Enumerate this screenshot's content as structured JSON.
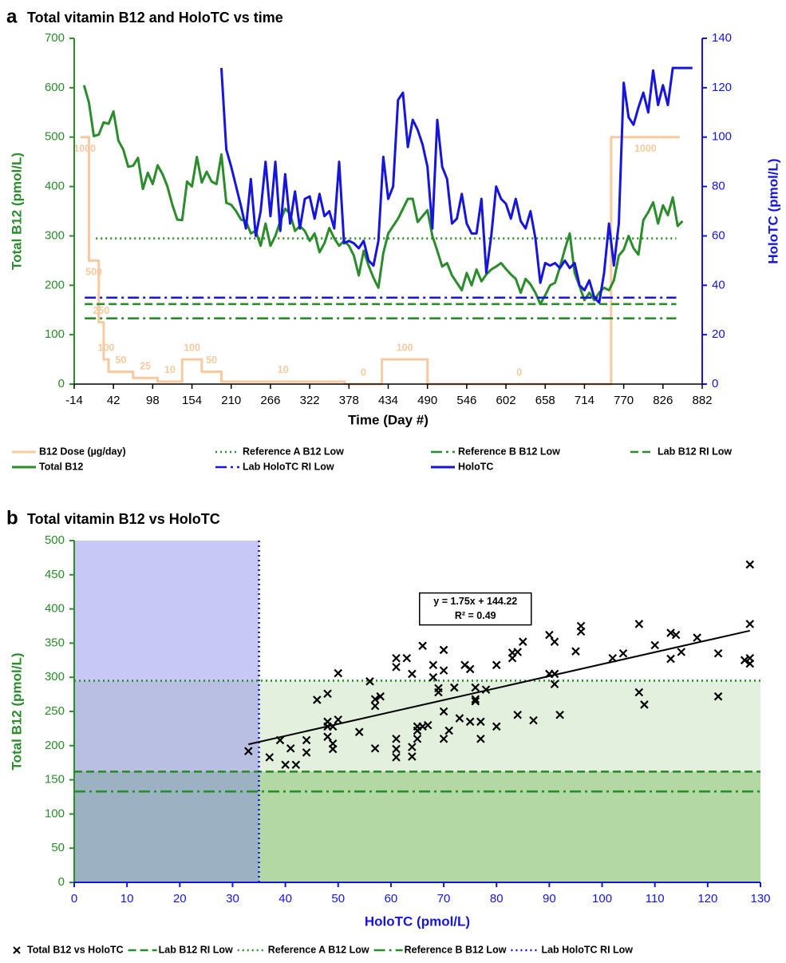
{
  "chart_data": [
    {
      "type": "line",
      "label": "a",
      "title": "Total vitamin B12 and HoloTC vs time",
      "xlabel": "Time (Day #)",
      "ylabel": "Total B12 (pmol/L)",
      "y2label": "HoloTC (pmol/L)",
      "xlim": [
        -14,
        882
      ],
      "xticks": [
        -14,
        42,
        98,
        154,
        210,
        266,
        322,
        378,
        434,
        490,
        546,
        602,
        658,
        714,
        770,
        826,
        882
      ],
      "ylim": [
        0,
        700
      ],
      "yticks": [
        0,
        100,
        200,
        300,
        400,
        500,
        600,
        700
      ],
      "y2lim": [
        0,
        140
      ],
      "y2ticks": [
        0,
        20,
        40,
        60,
        80,
        100,
        120,
        140
      ],
      "y3lim": [
        0,
        1400
      ],
      "series": [
        {
          "name": "B12 Dose (µg/day)",
          "color": "#f9c9a0",
          "style": "solid",
          "step": true,
          "axis": "y3",
          "x": [
            -5,
            7,
            21,
            28,
            35,
            70,
            105,
            140,
            168,
            196,
            372,
            425,
            490,
            752,
            850
          ],
          "values": [
            1000,
            500,
            250,
            100,
            50,
            25,
            10,
            100,
            50,
            10,
            0,
            100,
            0,
            1000,
            1000
          ],
          "value_labels": [
            "1000",
            "500",
            "250",
            "100",
            "50",
            "25",
            "10",
            "100",
            "50",
            "10",
            "0",
            "100",
            "0",
            "1000",
            null
          ]
        },
        {
          "name": "Reference A B12 Low",
          "color": "#2a8c2a",
          "style": "dotted",
          "x": [
            17,
            845
          ],
          "values": [
            295,
            295
          ]
        },
        {
          "name": "Reference B B12 Low",
          "color": "#2a8c2a",
          "style": "dashdot",
          "x": [
            1,
            845
          ],
          "values": [
            133,
            133
          ]
        },
        {
          "name": "Lab B12 RI Low",
          "color": "#2a8c2a",
          "style": "dashed",
          "x": [
            1,
            845
          ],
          "values": [
            162,
            162
          ]
        },
        {
          "name": "Total B12",
          "color": "#2a8c2a",
          "style": "solid",
          "x": [
            0,
            7,
            14,
            21,
            28,
            35,
            42,
            49,
            56,
            63,
            70,
            77,
            84,
            91,
            98,
            105,
            112,
            119,
            126,
            133,
            140,
            147,
            154,
            161,
            168,
            175,
            182,
            189,
            196,
            203,
            210,
            217,
            224,
            231,
            238,
            245,
            252,
            259,
            266,
            273,
            280,
            287,
            294,
            301,
            308,
            315,
            322,
            329,
            336,
            343,
            350,
            357,
            364,
            371,
            378,
            385,
            392,
            399,
            406,
            413,
            420,
            427,
            434,
            441,
            448,
            455,
            462,
            469,
            476,
            483,
            490,
            497,
            504,
            511,
            518,
            525,
            532,
            539,
            546,
            553,
            560,
            567,
            574,
            581,
            588,
            595,
            602,
            609,
            616,
            623,
            630,
            637,
            644,
            651,
            658,
            665,
            672,
            679,
            686,
            693,
            700,
            707,
            714,
            721,
            728,
            735,
            742,
            749,
            756,
            763,
            770,
            777,
            784,
            791,
            798,
            805,
            812,
            819,
            826,
            833,
            840,
            847,
            854
          ],
          "values": [
            605,
            570,
            502,
            505,
            530,
            527,
            552,
            493,
            475,
            440,
            442,
            458,
            395,
            428,
            405,
            443,
            425,
            400,
            363,
            333,
            332,
            410,
            400,
            460,
            408,
            430,
            410,
            405,
            465,
            367,
            363,
            350,
            333,
            330,
            305,
            310,
            280,
            325,
            280,
            300,
            330,
            355,
            345,
            310,
            320,
            310,
            290,
            305,
            267,
            285,
            316,
            295,
            280,
            290,
            280,
            260,
            220,
            270,
            240,
            215,
            195,
            265,
            305,
            320,
            335,
            355,
            375,
            375,
            328,
            340,
            352,
            300,
            270,
            238,
            245,
            220,
            205,
            190,
            225,
            200,
            232,
            208,
            222,
            232,
            238,
            245,
            233,
            222,
            213,
            185,
            213,
            202,
            185,
            162,
            180,
            200,
            205,
            237,
            273,
            305,
            225,
            198,
            170,
            185,
            170,
            185,
            195,
            190,
            210,
            260,
            272,
            300,
            275,
            262,
            332,
            348,
            368,
            325,
            362,
            342,
            378,
            320,
            330
          ]
        },
        {
          "name": "Lab HoloTC RI Low",
          "color": "#1515dd",
          "style": "dashdot",
          "axis": "y2",
          "x": [
            1,
            845
          ],
          "values": [
            35,
            35
          ]
        },
        {
          "name": "HoloTC",
          "color": "#1515dd",
          "style": "solid",
          "axis": "y2",
          "x": [
            196,
            203,
            210,
            217,
            224,
            231,
            238,
            245,
            252,
            259,
            266,
            273,
            280,
            287,
            294,
            301,
            308,
            315,
            322,
            329,
            336,
            343,
            350,
            357,
            364,
            371,
            378,
            385,
            392,
            399,
            406,
            413,
            420,
            427,
            434,
            441,
            448,
            455,
            462,
            469,
            476,
            483,
            490,
            497,
            504,
            511,
            518,
            525,
            532,
            539,
            546,
            553,
            560,
            567,
            574,
            581,
            588,
            595,
            602,
            609,
            616,
            623,
            630,
            637,
            644,
            651,
            658,
            665,
            672,
            679,
            686,
            693,
            700,
            707,
            714,
            721,
            728,
            735,
            742,
            749,
            756,
            763,
            770,
            777,
            784,
            791,
            798,
            805,
            812,
            819,
            826,
            833,
            840,
            847,
            854,
            861,
            868
          ],
          "values": [
            128,
            95,
            88,
            80,
            72,
            63,
            83,
            60,
            70,
            90,
            68,
            90,
            62,
            85,
            65,
            78,
            63,
            75,
            76,
            67,
            77,
            68,
            70,
            63,
            90,
            57,
            58,
            57,
            55,
            58,
            50,
            48,
            58,
            92,
            75,
            80,
            115,
            118,
            96,
            107,
            103,
            97,
            88,
            63,
            107,
            88,
            83,
            65,
            67,
            77,
            65,
            61,
            61,
            75,
            45,
            60,
            80,
            75,
            73,
            67,
            75,
            66,
            63,
            70,
            59,
            41,
            49,
            48,
            49,
            47,
            50,
            47,
            49,
            40,
            38,
            42,
            35,
            33,
            45,
            65,
            48,
            65,
            122,
            108,
            105,
            112,
            118,
            110,
            127,
            113,
            121,
            113,
            128,
            128,
            128,
            128,
            128
          ]
        }
      ]
    },
    {
      "type": "scatter",
      "label": "b",
      "title": "Total vitamin B12 vs HoloTC",
      "xlabel": "HoloTC (pmol/L)",
      "ylabel": "Total B12 (pmol/L)",
      "xlim": [
        0,
        130
      ],
      "xticks": [
        0,
        10,
        20,
        30,
        40,
        50,
        60,
        70,
        80,
        90,
        100,
        110,
        120,
        130
      ],
      "ylim": [
        0,
        500
      ],
      "yticks": [
        0,
        50,
        100,
        150,
        200,
        250,
        300,
        350,
        400,
        450,
        500
      ],
      "series": [
        {
          "name": "Total B12 vs HoloTC",
          "color": "#000000",
          "marker": "x",
          "x": [
            33,
            37,
            39,
            40,
            41,
            42,
            44,
            44,
            46,
            48,
            48,
            48,
            48,
            49,
            49,
            49,
            50,
            50,
            54,
            56,
            57,
            57,
            57,
            58,
            61,
            61,
            61,
            61,
            61,
            63,
            64,
            64,
            64,
            65,
            65,
            65,
            66,
            66,
            67,
            68,
            68,
            69,
            69,
            70,
            70,
            70,
            70,
            71,
            72,
            73,
            74,
            75,
            75,
            76,
            76,
            76,
            77,
            77,
            78,
            80,
            80,
            83,
            83,
            84,
            84,
            85,
            87,
            90,
            90,
            91,
            91,
            91,
            92,
            95,
            96,
            96,
            102,
            104,
            107,
            107,
            108,
            110,
            113,
            113,
            114,
            115,
            118,
            122,
            122,
            127,
            128,
            128,
            128,
            128
          ],
          "values": [
            192,
            183,
            208,
            172,
            196,
            172,
            190,
            208,
            267,
            276,
            235,
            228,
            213,
            228,
            203,
            195,
            238,
            306,
            220,
            294,
            196,
            258,
            268,
            272,
            328,
            315,
            195,
            183,
            210,
            328,
            184,
            198,
            305,
            228,
            222,
            210,
            346,
            228,
            230,
            318,
            300,
            278,
            284,
            210,
            340,
            250,
            310,
            222,
            285,
            240,
            318,
            312,
            235,
            285,
            268,
            265,
            235,
            210,
            282,
            228,
            318,
            328,
            336,
            245,
            337,
            352,
            237,
            362,
            305,
            352,
            305,
            290,
            245,
            338,
            367,
            375,
            328,
            335,
            378,
            278,
            260,
            347,
            365,
            327,
            362,
            337,
            358,
            335,
            272,
            325,
            465,
            378,
            328,
            320
          ]
        },
        {
          "name": "Lab B12 RI Low",
          "color": "#2a8c2a",
          "style": "dashed",
          "orientation": "horizontal",
          "value": 162
        },
        {
          "name": "Reference A B12 Low",
          "color": "#2a8c2a",
          "style": "dotted",
          "orientation": "horizontal",
          "value": 295
        },
        {
          "name": "Reference B B12 Low",
          "color": "#2a8c2a",
          "style": "dashdot",
          "orientation": "horizontal",
          "value": 133
        },
        {
          "name": "Lab HoloTC RI Low",
          "color": "#1515dd",
          "style": "dotted",
          "orientation": "vertical",
          "value": 35
        }
      ],
      "trendline": {
        "slope": 1.75,
        "intercept": 144.22,
        "x": [
          33,
          128
        ],
        "label": "y = 1.75x + 144.22",
        "r2_label": "R² = 0.49"
      }
    }
  ]
}
